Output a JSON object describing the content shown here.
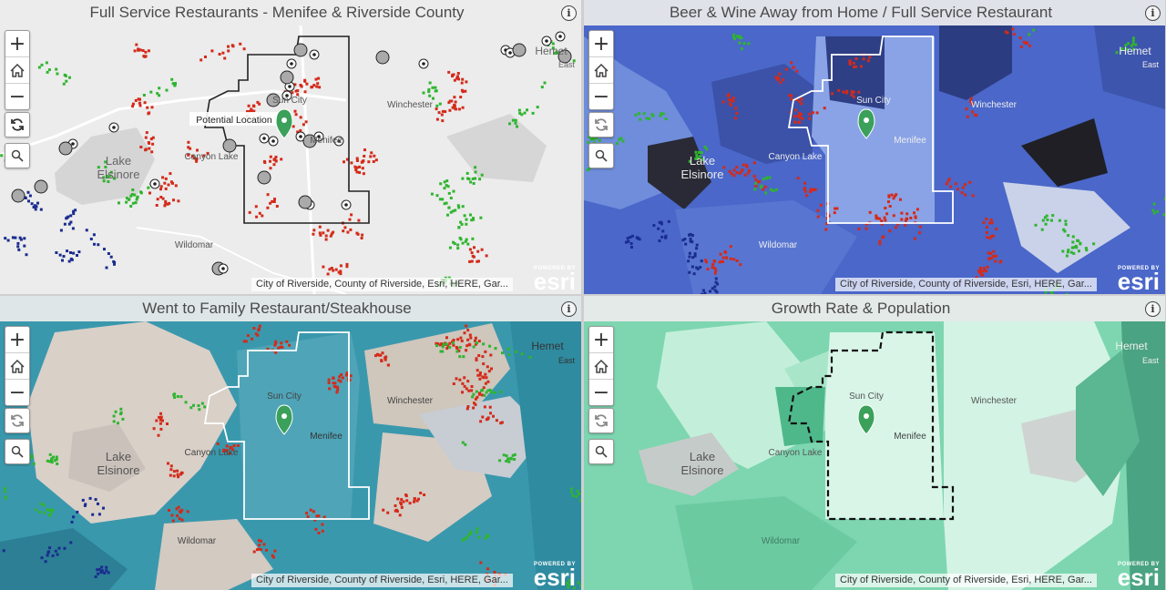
{
  "panels": [
    {
      "title": "Full Service Restaurants - Menifee & Riverside County",
      "labels": {
        "sun_city": "Sun City",
        "menifee": "Menifee",
        "canyon_lake": "Canyon Lake",
        "lake": "Lake",
        "elsinore": "Elsinore",
        "winchester": "Winchester",
        "wildomar": "Wildomar",
        "hemet": "Hemet",
        "east": "East"
      },
      "callout": "Potential Location"
    },
    {
      "title": "Beer & Wine Away from Home / Full Service Restaurant",
      "labels": {
        "sun_city": "Sun City",
        "menifee": "Menifee",
        "canyon_lake": "Canyon Lake",
        "lake": "Lake",
        "elsinore": "Elsinore",
        "winchester": "Winchester",
        "wildomar": "Wildomar",
        "hemet": "Hemet",
        "east": "East"
      }
    },
    {
      "title": "Went to Family Restaurant/Steakhouse",
      "labels": {
        "sun_city": "Sun City",
        "menifee": "Menifee",
        "canyon_lake": "Canyon Lake",
        "lake": "Lake",
        "elsinore": "Elsinore",
        "winchester": "Winchester",
        "wildomar": "Wildomar",
        "hemet": "Hemet",
        "east": "East"
      }
    },
    {
      "title": "Growth Rate & Population",
      "labels": {
        "sun_city": "Sun City",
        "menifee": "Menifee",
        "canyon_lake": "Canyon Lake",
        "lake": "Lake",
        "elsinore": "Elsinore",
        "winchester": "Winchester",
        "wildomar": "Wildomar",
        "hemet": "Hemet",
        "east": "East"
      }
    }
  ],
  "controls": {
    "zoom_in": "+",
    "zoom_out": "−",
    "info": "i"
  },
  "attribution": "City of Riverside, County of Riverside, Esri, HERE, Gar...",
  "logo": {
    "powered_by": "POWERED BY",
    "brand": "esri"
  },
  "colors": {
    "dot_red": "#d42a1a",
    "dot_green": "#2fb52f",
    "dot_blue": "#1a2c8f",
    "pin": "#3aa05a",
    "panel1_base": "#eaeaea",
    "panel2_base": "#4a67c9",
    "panel3_base": "#3a98ad",
    "panel4_base": "#7dd6b0"
  },
  "icons": [
    "plus-icon",
    "minus-icon",
    "home-icon",
    "refresh-icon",
    "search-icon",
    "info-icon",
    "map-pin-icon"
  ]
}
